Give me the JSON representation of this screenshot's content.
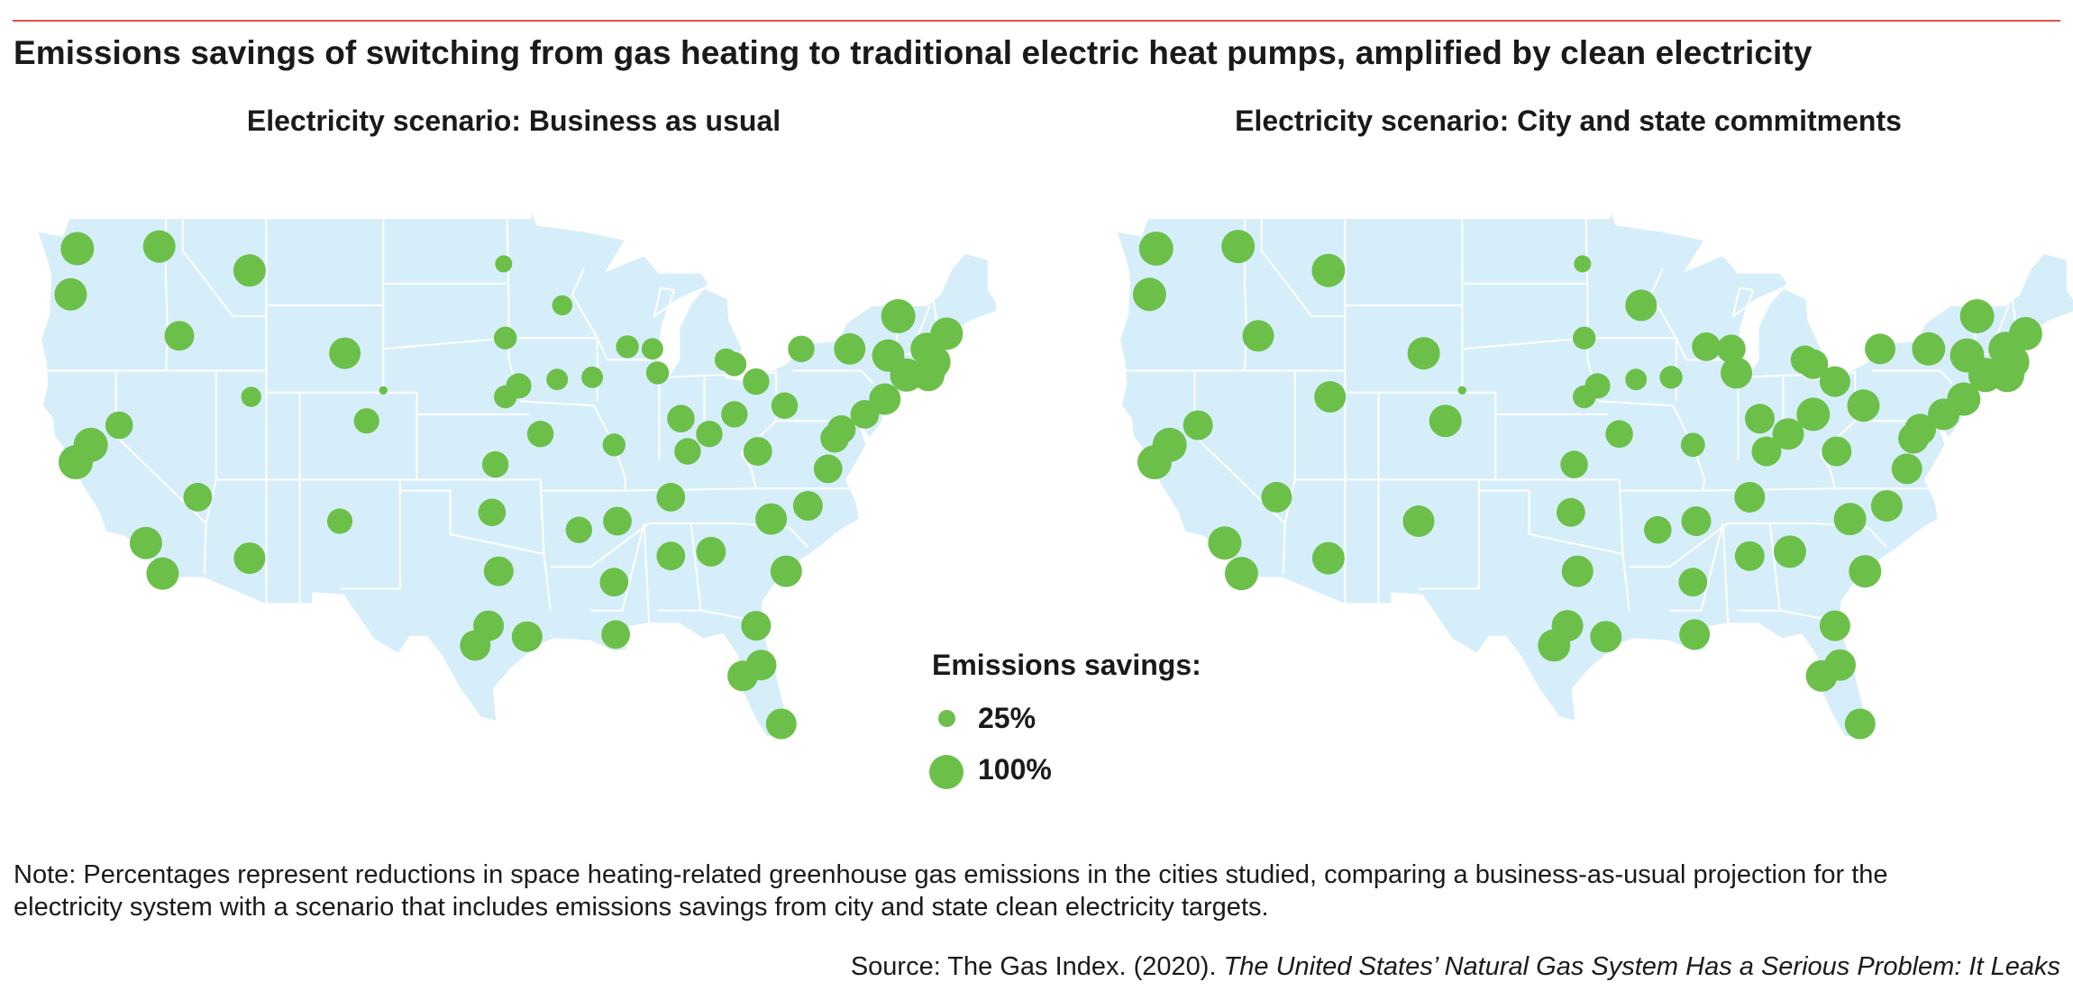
{
  "title": "Emissions savings of switching from gas heating to traditional electric heat pumps, amplified by clean electricity",
  "maps": [
    {
      "title": "Electricity scenario: Business as usual",
      "cities": [
        {
          "lon": -122.3,
          "lat": 47.6,
          "savings": 95
        },
        {
          "lon": -122.7,
          "lat": 45.5,
          "savings": 90
        },
        {
          "lon": -117.4,
          "lat": 47.7,
          "savings": 90
        },
        {
          "lon": -116.2,
          "lat": 43.6,
          "savings": 75
        },
        {
          "lon": -112.0,
          "lat": 46.6,
          "savings": 90
        },
        {
          "lon": -122.4,
          "lat": 37.8,
          "savings": 100
        },
        {
          "lon": -121.5,
          "lat": 38.6,
          "savings": 100
        },
        {
          "lon": -119.8,
          "lat": 39.5,
          "savings": 65
        },
        {
          "lon": -115.1,
          "lat": 36.2,
          "savings": 70
        },
        {
          "lon": -118.2,
          "lat": 34.1,
          "savings": 90
        },
        {
          "lon": -117.2,
          "lat": 32.7,
          "savings": 90
        },
        {
          "lon": -112.0,
          "lat": 33.4,
          "savings": 85
        },
        {
          "lon": -111.9,
          "lat": 40.8,
          "savings": 35
        },
        {
          "lon": -106.3,
          "lat": 42.8,
          "savings": 85
        },
        {
          "lon": -105.0,
          "lat": 39.7,
          "savings": 55
        },
        {
          "lon": -104.0,
          "lat": 41.1,
          "savings": 6
        },
        {
          "lon": -106.6,
          "lat": 35.1,
          "savings": 55
        },
        {
          "lon": -96.8,
          "lat": 46.9,
          "savings": 25
        },
        {
          "lon": -93.3,
          "lat": 45.0,
          "savings": 35
        },
        {
          "lon": -96.7,
          "lat": 43.5,
          "savings": 45
        },
        {
          "lon": -96.7,
          "lat": 40.8,
          "savings": 45
        },
        {
          "lon": -95.9,
          "lat": 41.3,
          "savings": 55
        },
        {
          "lon": -93.6,
          "lat": 41.6,
          "savings": 40
        },
        {
          "lon": -91.5,
          "lat": 41.7,
          "savings": 40
        },
        {
          "lon": -89.4,
          "lat": 43.1,
          "savings": 45
        },
        {
          "lon": -87.9,
          "lat": 43.0,
          "savings": 40
        },
        {
          "lon": -87.6,
          "lat": 41.9,
          "savings": 45
        },
        {
          "lon": -94.6,
          "lat": 39.1,
          "savings": 60
        },
        {
          "lon": -97.3,
          "lat": 37.7,
          "savings": 60
        },
        {
          "lon": -90.2,
          "lat": 38.6,
          "savings": 45
        },
        {
          "lon": -97.5,
          "lat": 35.5,
          "savings": 65
        },
        {
          "lon": -92.3,
          "lat": 34.7,
          "savings": 60
        },
        {
          "lon": -97.1,
          "lat": 32.8,
          "savings": 75
        },
        {
          "lon": -97.7,
          "lat": 30.3,
          "savings": 80
        },
        {
          "lon": -98.5,
          "lat": 29.4,
          "savings": 80
        },
        {
          "lon": -95.4,
          "lat": 29.8,
          "savings": 80
        },
        {
          "lon": -90.2,
          "lat": 32.3,
          "savings": 70
        },
        {
          "lon": -90.1,
          "lat": 29.9,
          "savings": 70
        },
        {
          "lon": -90.0,
          "lat": 35.1,
          "savings": 70
        },
        {
          "lon": -86.8,
          "lat": 36.2,
          "savings": 70
        },
        {
          "lon": -86.8,
          "lat": 33.5,
          "savings": 70
        },
        {
          "lon": -84.4,
          "lat": 33.7,
          "savings": 75
        },
        {
          "lon": -83.0,
          "lat": 40.0,
          "savings": 60
        },
        {
          "lon": -85.8,
          "lat": 38.3,
          "savings": 60
        },
        {
          "lon": -86.2,
          "lat": 39.8,
          "savings": 65
        },
        {
          "lon": -84.5,
          "lat": 39.1,
          "savings": 60
        },
        {
          "lon": -83.0,
          "lat": 42.3,
          "savings": 50
        },
        {
          "lon": -83.5,
          "lat": 42.5,
          "savings": 45
        },
        {
          "lon": -81.7,
          "lat": 41.5,
          "savings": 60
        },
        {
          "lon": -80.0,
          "lat": 40.4,
          "savings": 60
        },
        {
          "lon": -81.6,
          "lat": 38.3,
          "savings": 70
        },
        {
          "lon": -78.6,
          "lat": 35.8,
          "savings": 75
        },
        {
          "lon": -80.8,
          "lat": 35.2,
          "savings": 85
        },
        {
          "lon": -79.9,
          "lat": 32.8,
          "savings": 85
        },
        {
          "lon": -81.7,
          "lat": 30.3,
          "savings": 75
        },
        {
          "lon": -82.5,
          "lat": 28.0,
          "savings": 80
        },
        {
          "lon": -81.4,
          "lat": 28.5,
          "savings": 80
        },
        {
          "lon": -80.2,
          "lat": 25.8,
          "savings": 80
        },
        {
          "lon": -77.4,
          "lat": 37.5,
          "savings": 70
        },
        {
          "lon": -77.0,
          "lat": 38.9,
          "savings": 70
        },
        {
          "lon": -76.6,
          "lat": 39.3,
          "savings": 70
        },
        {
          "lon": -75.2,
          "lat": 40.0,
          "savings": 70
        },
        {
          "lon": -74.0,
          "lat": 40.7,
          "savings": 85
        },
        {
          "lon": -72.7,
          "lat": 41.8,
          "savings": 95
        },
        {
          "lon": -71.1,
          "lat": 42.4,
          "savings": 100
        },
        {
          "lon": -71.4,
          "lat": 41.8,
          "savings": 90
        },
        {
          "lon": -73.8,
          "lat": 42.7,
          "savings": 90
        },
        {
          "lon": -76.1,
          "lat": 43.0,
          "savings": 85
        },
        {
          "lon": -73.2,
          "lat": 44.5,
          "savings": 100
        },
        {
          "lon": -71.5,
          "lat": 43.0,
          "savings": 90
        },
        {
          "lon": -70.3,
          "lat": 43.7,
          "savings": 90
        },
        {
          "lon": -79.0,
          "lat": 43.0,
          "savings": 60
        }
      ]
    },
    {
      "title": "Electricity scenario: City and state commitments",
      "cities": [
        {
          "lon": -122.3,
          "lat": 47.6,
          "savings": 100
        },
        {
          "lon": -122.7,
          "lat": 45.5,
          "savings": 95
        },
        {
          "lon": -117.4,
          "lat": 47.7,
          "savings": 95
        },
        {
          "lon": -116.2,
          "lat": 43.6,
          "savings": 85
        },
        {
          "lon": -112.0,
          "lat": 46.6,
          "savings": 95
        },
        {
          "lon": -122.4,
          "lat": 37.8,
          "savings": 100
        },
        {
          "lon": -121.5,
          "lat": 38.6,
          "savings": 100
        },
        {
          "lon": -119.8,
          "lat": 39.5,
          "savings": 75
        },
        {
          "lon": -115.1,
          "lat": 36.2,
          "savings": 80
        },
        {
          "lon": -118.2,
          "lat": 34.1,
          "savings": 95
        },
        {
          "lon": -117.2,
          "lat": 32.7,
          "savings": 95
        },
        {
          "lon": -112.0,
          "lat": 33.4,
          "savings": 90
        },
        {
          "lon": -111.9,
          "lat": 40.8,
          "savings": 85
        },
        {
          "lon": -106.3,
          "lat": 42.8,
          "savings": 90
        },
        {
          "lon": -105.0,
          "lat": 39.7,
          "savings": 90
        },
        {
          "lon": -104.0,
          "lat": 41.1,
          "savings": 6
        },
        {
          "lon": -106.6,
          "lat": 35.1,
          "savings": 85
        },
        {
          "lon": -96.8,
          "lat": 46.9,
          "savings": 25
        },
        {
          "lon": -93.3,
          "lat": 45.0,
          "savings": 85
        },
        {
          "lon": -96.7,
          "lat": 43.5,
          "savings": 45
        },
        {
          "lon": -96.7,
          "lat": 40.8,
          "savings": 45
        },
        {
          "lon": -95.9,
          "lat": 41.3,
          "savings": 55
        },
        {
          "lon": -93.6,
          "lat": 41.6,
          "savings": 40
        },
        {
          "lon": -91.5,
          "lat": 41.7,
          "savings": 45
        },
        {
          "lon": -89.4,
          "lat": 43.1,
          "savings": 70
        },
        {
          "lon": -87.9,
          "lat": 43.0,
          "savings": 70
        },
        {
          "lon": -87.6,
          "lat": 41.9,
          "savings": 85
        },
        {
          "lon": -94.6,
          "lat": 39.1,
          "savings": 65
        },
        {
          "lon": -97.3,
          "lat": 37.7,
          "savings": 65
        },
        {
          "lon": -90.2,
          "lat": 38.6,
          "savings": 50
        },
        {
          "lon": -97.5,
          "lat": 35.5,
          "savings": 70
        },
        {
          "lon": -92.3,
          "lat": 34.7,
          "savings": 65
        },
        {
          "lon": -97.1,
          "lat": 32.8,
          "savings": 85
        },
        {
          "lon": -97.7,
          "lat": 30.3,
          "savings": 85
        },
        {
          "lon": -98.5,
          "lat": 29.4,
          "savings": 90
        },
        {
          "lon": -95.4,
          "lat": 29.8,
          "savings": 85
        },
        {
          "lon": -90.2,
          "lat": 32.3,
          "savings": 70
        },
        {
          "lon": -90.1,
          "lat": 29.9,
          "savings": 80
        },
        {
          "lon": -90.0,
          "lat": 35.1,
          "savings": 75
        },
        {
          "lon": -86.8,
          "lat": 36.2,
          "savings": 80
        },
        {
          "lon": -86.8,
          "lat": 33.5,
          "savings": 75
        },
        {
          "lon": -84.4,
          "lat": 33.7,
          "savings": 90
        },
        {
          "lon": -83.0,
          "lat": 40.0,
          "savings": 95
        },
        {
          "lon": -85.8,
          "lat": 38.3,
          "savings": 75
        },
        {
          "lon": -86.2,
          "lat": 39.8,
          "savings": 75
        },
        {
          "lon": -84.5,
          "lat": 39.1,
          "savings": 85
        },
        {
          "lon": -83.0,
          "lat": 42.3,
          "savings": 75
        },
        {
          "lon": -83.5,
          "lat": 42.5,
          "savings": 70
        },
        {
          "lon": -81.7,
          "lat": 41.5,
          "savings": 80
        },
        {
          "lon": -80.0,
          "lat": 40.4,
          "savings": 90
        },
        {
          "lon": -81.6,
          "lat": 38.3,
          "savings": 75
        },
        {
          "lon": -78.6,
          "lat": 35.8,
          "savings": 85
        },
        {
          "lon": -80.8,
          "lat": 35.2,
          "savings": 90
        },
        {
          "lon": -79.9,
          "lat": 32.8,
          "savings": 90
        },
        {
          "lon": -81.7,
          "lat": 30.3,
          "savings": 80
        },
        {
          "lon": -82.5,
          "lat": 28.0,
          "savings": 85
        },
        {
          "lon": -81.4,
          "lat": 28.5,
          "savings": 85
        },
        {
          "lon": -80.2,
          "lat": 25.8,
          "savings": 80
        },
        {
          "lon": -77.4,
          "lat": 37.5,
          "savings": 80
        },
        {
          "lon": -77.0,
          "lat": 38.9,
          "savings": 80
        },
        {
          "lon": -76.6,
          "lat": 39.3,
          "savings": 85
        },
        {
          "lon": -75.2,
          "lat": 40.0,
          "savings": 85
        },
        {
          "lon": -74.0,
          "lat": 40.7,
          "savings": 95
        },
        {
          "lon": -72.7,
          "lat": 41.8,
          "savings": 100
        },
        {
          "lon": -71.1,
          "lat": 42.4,
          "savings": 100
        },
        {
          "lon": -71.4,
          "lat": 41.8,
          "savings": 100
        },
        {
          "lon": -73.8,
          "lat": 42.7,
          "savings": 100
        },
        {
          "lon": -76.1,
          "lat": 43.0,
          "savings": 95
        },
        {
          "lon": -73.2,
          "lat": 44.5,
          "savings": 100
        },
        {
          "lon": -71.5,
          "lat": 43.0,
          "savings": 100
        },
        {
          "lon": -70.3,
          "lat": 43.7,
          "savings": 95
        },
        {
          "lon": -79.0,
          "lat": 43.0,
          "savings": 80
        }
      ]
    }
  ],
  "legend": {
    "title": "Emissions savings:",
    "items": [
      {
        "label": "25%",
        "savings": 25
      },
      {
        "label": "100%",
        "savings": 100
      }
    ]
  },
  "colors": {
    "dot": "#6cc04a",
    "land": "#d6eefa",
    "rule": "#e2504b"
  },
  "note": "Note: Percentages represent reductions in space heating-related greenhouse gas emissions in the cities studied, comparing a business-as-usual projection for the electricity system with a scenario that includes emissions savings from city and state clean electricity targets.",
  "source": {
    "prefix": "Source: The Gas Index. (2020). ",
    "title": "The United States’ Natural Gas System Has a Serious Problem: It Leaks"
  }
}
